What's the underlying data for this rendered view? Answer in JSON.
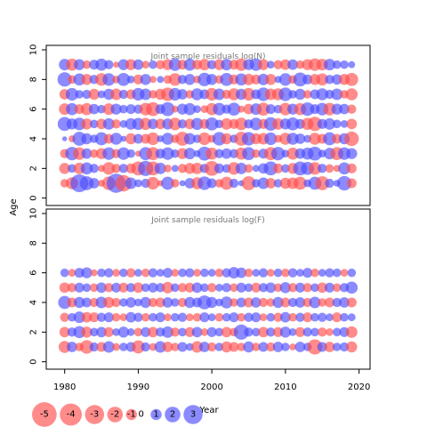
{
  "chart_data": {
    "type": "scatter",
    "subtype": "bubble",
    "xlabel": "Year",
    "ylabel": "Age",
    "xlim": [
      1977.5,
      2021.5
    ],
    "x_ticks": [
      1980,
      1990,
      2000,
      2010,
      2020
    ],
    "x_tick_labels": [
      "1980",
      "1990",
      "2000",
      "2010",
      "2020"
    ],
    "y_ticks": [
      0,
      2,
      4,
      6,
      8,
      10
    ],
    "y_tick_labels": [
      "0",
      "2",
      "4",
      "6",
      "8",
      "10"
    ],
    "colors": {
      "positive": "#4d4dff",
      "negative": "#ff4d4d"
    },
    "legend": {
      "placement": "bottom-left",
      "values": [
        -5,
        -4,
        -3,
        -2,
        -1,
        0,
        1,
        2,
        3
      ],
      "labels": [
        "-5",
        "-4",
        "-3",
        "-2",
        "-1",
        "0",
        "1",
        "2",
        "3"
      ]
    },
    "panels": [
      {
        "title": "Joint sample residuals log(N)",
        "ylim": [
          -0.5,
          10.3
        ],
        "years": [
          1980,
          2019
        ],
        "ages": [
          1,
          2,
          3,
          4,
          5,
          6,
          7,
          8,
          9
        ],
        "residuals": [
          [
            -0.6,
            -1.2,
            2.6,
            1.6,
            0.9,
            -0.4,
            -1.5,
            3.0,
            -2.2,
            1.1,
            0.5,
            0.7,
            -1.3,
            -0.3,
            1.4,
            -0.6,
            0.3,
            0.9,
            -1.2,
            1.5,
            0.8,
            -0.6,
            -1.4,
            0.7,
            0.3,
            -1.6,
            0.6,
            1.1,
            -0.9,
            0.6,
            -1.0,
            -1.1,
            -1.4,
            0.5,
            1.4,
            -1.6,
            0.7,
            0.4,
            1.7,
            -0.8
          ],
          [
            -1.0,
            0.6,
            -1.1,
            1.2,
            0.7,
            -0.4,
            -1.3,
            -0.7,
            0.7,
            -0.8,
            -1.6,
            1.9,
            -1.6,
            1.1,
            -0.5,
            0.4,
            -0.7,
            -1.0,
            -1.1,
            0.7,
            -1.8,
            0.8,
            0.6,
            -1.3,
            1.1,
            -0.6,
            0.4,
            0.9,
            1.6,
            -0.8,
            0.6,
            -1.0,
            1.6,
            1.4,
            -1.3,
            0.7,
            -0.6,
            -0.4,
            1.2,
            -0.8
          ],
          [
            -0.7,
            1.5,
            -1.3,
            0.9,
            -0.6,
            -1.0,
            1.3,
            -0.7,
            1.3,
            0.6,
            -0.3,
            1.4,
            -1.4,
            0.8,
            1.3,
            0.6,
            -1.0,
            1.1,
            0.4,
            1.6,
            -1.2,
            0.7,
            0.9,
            0.7,
            -1.2,
            1.4,
            -0.6,
            0.8,
            -1.4,
            1.5,
            0.5,
            -1.2,
            0.9,
            1.2,
            1.6,
            0.5,
            1.1,
            -1.4,
            1.3,
            1.0
          ],
          [
            0.2,
            -0.4,
            1.6,
            1.0,
            0.6,
            1.4,
            -0.8,
            1.2,
            0.3,
            -1.0,
            0.8,
            -0.8,
            -1.3,
            0.4,
            1.2,
            -0.6,
            -1.6,
            1.1,
            0.6,
            -1.3,
            -0.5,
            1.5,
            -1.0,
            0.6,
            -1.6,
            1.5,
            -1.0,
            -1.1,
            1.3,
            -0.5,
            -1.2,
            1.2,
            0.9,
            0.5,
            -1.2,
            -0.8,
            1.4,
            -0.8,
            1.0,
            -1.7
          ],
          [
            1.6,
            1.0,
            1.3,
            -1.0,
            0.6,
            -0.9,
            1.1,
            -0.7,
            0.5,
            1.1,
            1.2,
            -1.2,
            0.9,
            -0.9,
            1.0,
            -1.3,
            0.7,
            -0.9,
            1.2,
            -0.8,
            1.4,
            0.6,
            -1.1,
            -0.8,
            -1.3,
            0.7,
            1.3,
            -0.8,
            1.5,
            -1.1,
            1.0,
            1.4,
            0.8,
            -1.2,
            -1.7,
            0.8,
            1.1,
            0.6,
            0.5,
            -0.9
          ],
          [
            -1.1,
            1.2,
            -0.8,
            -1.2,
            0.9,
            0.6,
            -1.1,
            1.0,
            0.6,
            0.8,
            0.7,
            -1.3,
            -1.6,
            0.8,
            1.6,
            -0.4,
            1.0,
            1.2,
            0.5,
            -0.5,
            -1.2,
            1.3,
            0.7,
            1.4,
            -0.4,
            -0.9,
            1.1,
            -1.4,
            0.8,
            0.6,
            -1.3,
            1.0,
            -1.2,
            1.5,
            0.8,
            1.3,
            -1.3,
            1.0,
            0.9,
            -0.7
          ],
          [
            -0.9,
            1.3,
            0.6,
            0.7,
            -1.0,
            0.5,
            1.0,
            -1.1,
            0.7,
            -0.8,
            1.3,
            1.1,
            -0.6,
            -1.0,
            -1.5,
            1.3,
            0.9,
            -0.6,
            1.2,
            0.8,
            -1.3,
            1.1,
            -0.7,
            -1.2,
            1.0,
            -1.3,
            0.8,
            1.5,
            -1.1,
            -1.2,
            1.5,
            0.6,
            1.0,
            -0.6,
            0.8,
            1.2,
            0.7,
            1.1,
            -0.6,
            -1.2
          ],
          [
            1.7,
            -0.6,
            1.2,
            -1.0,
            0.7,
            -1.3,
            1.3,
            -0.5,
            1.4,
            0.5,
            -0.8,
            1.0,
            -0.4,
            0.4,
            -0.6,
            -1.3,
            0.7,
            1.0,
            -0.5,
            1.5,
            1.0,
            -0.6,
            1.4,
            -0.8,
            1.2,
            -1.1,
            -0.8,
            1.1,
            -1.0,
            0.4,
            1.3,
            -0.6,
            1.6,
            0.8,
            -1.0,
            -1.2,
            0.7,
            0.9,
            -1.0,
            -1.4
          ],
          [
            1.1,
            -1.2,
            1.0,
            -0.6,
            0.8,
            1.2,
            0.7,
            -0.3,
            1.0,
            -1.0,
            0.9,
            -0.5,
            0.6,
            -0.7,
            -1.0,
            1.3,
            -0.8,
            1.2,
            -0.8,
            -1.1,
            0.7,
            -1.0,
            1.1,
            -0.8,
            -1.3,
            1.0,
            1.3,
            -1.0,
            0.5,
            -0.7,
            -0.9,
            0.9,
            -0.6,
            -1.0,
            -1.3,
            -1.1,
            1.1,
            0.6,
            0.6,
            0.4
          ]
        ]
      },
      {
        "title": "Joint sample residuals log(F)",
        "ylim": [
          -0.5,
          10.3
        ],
        "years": [
          1980,
          2019
        ],
        "ages": [
          1,
          2,
          3,
          4,
          5,
          6
        ],
        "residuals": [
          [
            -1.2,
            0.9,
            -0.6,
            -1.5,
            0.7,
            -0.8,
            1.1,
            -0.5,
            0.6,
            0.8,
            -1.4,
            0.7,
            -0.5,
            1.1,
            -0.9,
            -0.6,
            0.8,
            0.5,
            -1.1,
            0.9,
            -0.7,
            0.6,
            -1.0,
            -0.8,
            -0.6,
            1.0,
            -0.6,
            0.8,
            -0.7,
            0.9,
            0.6,
            -0.4,
            0.9,
            0.6,
            -1.9,
            0.8,
            -0.9,
            0.6,
            0.7,
            -1.0
          ],
          [
            -0.9,
            0.7,
            1.2,
            -1.0,
            0.6,
            0.9,
            -0.8,
            0.5,
            1.0,
            0.5,
            -0.6,
            0.8,
            -0.9,
            0.7,
            1.1,
            -0.7,
            0.6,
            -0.8,
            0.9,
            -0.5,
            0.8,
            0.6,
            -0.9,
            -0.6,
            1.9,
            0.7,
            0.6,
            -0.9,
            0.7,
            -0.8,
            1.0,
            0.5,
            -0.8,
            0.7,
            0.6,
            -0.7,
            -0.5,
            0.6,
            0.8,
            -1.1
          ],
          [
            -0.7,
            0.6,
            1.1,
            -0.9,
            -0.8,
            0.7,
            0.8,
            -0.6,
            -0.5,
            0.9,
            0.7,
            -0.6,
            0.6,
            0.8,
            -0.5,
            0.6,
            0.7,
            -0.5,
            -0.6,
            0.8,
            0.5,
            -0.6,
            0.6,
            0.8,
            -0.6,
            0.7,
            0.8,
            -0.5,
            0.6,
            -0.7,
            0.9,
            -0.6,
            0.7,
            -0.8,
            0.6,
            0.7,
            0.5,
            -0.8,
            0.6,
            0.5
          ],
          [
            1.4,
            -0.8,
            1.0,
            0.8,
            -0.7,
            1.1,
            -1.0,
            -0.7,
            0.6,
            0.9,
            0.5,
            1.0,
            -0.7,
            -0.8,
            0.9,
            0.6,
            -0.7,
            1.0,
            0.8,
            1.6,
            1.0,
            0.5,
            1.2,
            -0.6,
            0.8,
            -0.8,
            0.9,
            -0.7,
            -0.6,
            1.0,
            -0.8,
            0.7,
            0.9,
            -0.7,
            1.1,
            -0.6,
            -0.8,
            0.7,
            0.9,
            -0.8
          ],
          [
            -0.9,
            -0.7,
            0.8,
            0.6,
            -0.6,
            0.9,
            -0.7,
            0.8,
            -0.8,
            0.7,
            -0.9,
            0.6,
            0.8,
            0.7,
            -1.1,
            0.6,
            -0.7,
            -0.8,
            0.9,
            0.6,
            -0.7,
            0.5,
            0.7,
            -0.6,
            0.8,
            0.6,
            -0.8,
            0.7,
            0.9,
            -0.6,
            1.0,
            -0.7,
            0.8,
            -0.7,
            0.6,
            -0.9,
            0.8,
            -0.6,
            0.7,
            1.2
          ],
          [
            0.6,
            -0.5,
            0.8,
            1.0,
            -0.4,
            0.6,
            0.7,
            -0.5,
            0.6,
            -0.7,
            0.5,
            -0.6,
            0.7,
            0.5,
            0.8,
            -0.5,
            0.6,
            0.7,
            -0.5,
            0.6,
            0.5,
            -0.6,
            0.7,
            1.1,
            0.9,
            -0.6,
            0.5,
            0.7,
            -0.5,
            0.6,
            -0.6,
            0.7,
            0.5,
            0.8,
            -0.6,
            0.5,
            0.7,
            0.6,
            -0.5,
            0.6
          ]
        ]
      }
    ]
  }
}
